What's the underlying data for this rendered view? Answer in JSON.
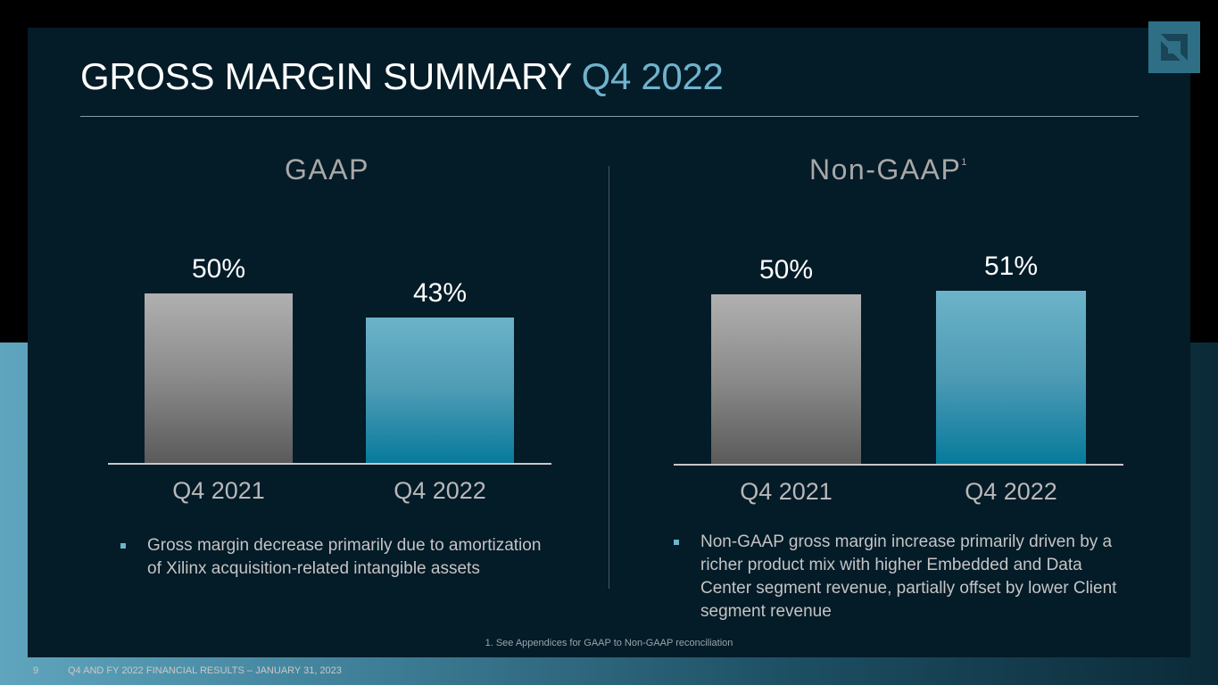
{
  "title": {
    "main": "GROSS MARGIN SUMMARY",
    "accent": "Q4 2022"
  },
  "gaap": {
    "heading": "GAAP",
    "bullet": "Gross margin decrease primarily due to amortization of Xilinx acquisition-related intangible assets"
  },
  "non_gaap": {
    "heading": "Non-GAAP",
    "footnote_marker": "1",
    "bullet": "Non-GAAP gross margin increase primarily driven by a richer product mix with higher Embedded and Data Center segment revenue, partially offset by lower Client segment revenue"
  },
  "chart_data": [
    {
      "type": "bar",
      "title": "GAAP",
      "categories": [
        "Q4 2021",
        "Q4 2022"
      ],
      "values": [
        50,
        43
      ],
      "value_labels": [
        "50%",
        "43%"
      ],
      "ylabel": "",
      "xlabel": "",
      "colors": [
        "#9a9a9a",
        "#4d9bb5"
      ]
    },
    {
      "type": "bar",
      "title": "Non-GAAP",
      "categories": [
        "Q4 2021",
        "Q4 2022"
      ],
      "values": [
        50,
        51
      ],
      "value_labels": [
        "50%",
        "51%"
      ],
      "ylabel": "",
      "xlabel": "",
      "colors": [
        "#9a9a9a",
        "#4d9bb5"
      ]
    }
  ],
  "footnote": "1. See Appendices for GAAP to Non-GAAP reconciliation",
  "footer": {
    "page_number": "9",
    "text": "Q4 AND FY 2022 FINANCIAL RESULTS – JANUARY 31, 2023"
  },
  "colors": {
    "accent": "#6fb3cc",
    "slide_bg": "#041b28",
    "bar_gray": "#9a9a9a",
    "bar_blue": "#4d9bb5"
  }
}
